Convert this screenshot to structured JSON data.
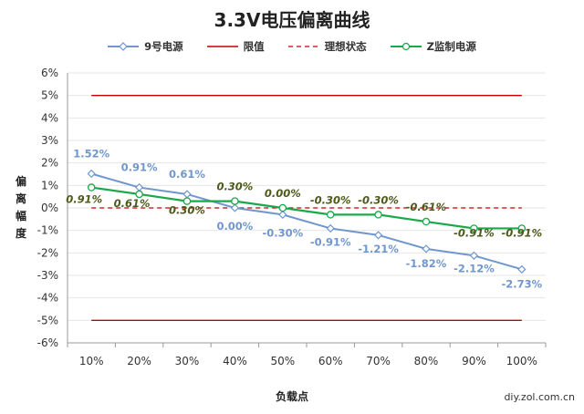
{
  "chart_data": {
    "type": "line",
    "title": "3.3V电压偏离曲线",
    "xlabel": "负载点",
    "ylabel": "偏离幅度",
    "categories": [
      "10%",
      "20%",
      "30%",
      "40%",
      "50%",
      "60%",
      "70%",
      "80%",
      "90%",
      "100%"
    ],
    "ylim": [
      -6,
      6
    ],
    "yticks": [
      "-6%",
      "-5%",
      "-4%",
      "-3%",
      "-2%",
      "-1%",
      "0%",
      "1%",
      "2%",
      "3%",
      "4%",
      "5%",
      "6%"
    ],
    "series": [
      {
        "name": "9号电源",
        "color": "#6f96cf",
        "values": [
          1.52,
          0.91,
          0.61,
          0.0,
          -0.3,
          -0.91,
          -1.21,
          -1.82,
          -2.12,
          -2.73
        ],
        "labels": [
          "1.52%",
          "0.91%",
          "0.61%",
          "0.00%",
          "-0.30%",
          "-0.91%",
          "-1.21%",
          "-1.82%",
          "-2.12%",
          "-2.73%"
        ]
      },
      {
        "name": "限值",
        "color": "#c00000",
        "upper": 5,
        "lower": -5
      },
      {
        "name": "理想状态",
        "color": "#c00000",
        "value": 0
      },
      {
        "name": "Z监制电源",
        "color": "#1aa84a",
        "values": [
          0.91,
          0.61,
          0.3,
          0.3,
          0.0,
          -0.3,
          -0.3,
          -0.61,
          -0.91,
          -0.91
        ],
        "labels": [
          "0.91%",
          "0.61%",
          "0.30%",
          "0.30%",
          "0.00%",
          "-0.30%",
          "-0.30%",
          "-0.61%",
          "-0.91%",
          "-0.91%"
        ]
      }
    ],
    "grid": true,
    "legend_position": "top"
  },
  "watermark_text": "diy.zol.com.cn"
}
